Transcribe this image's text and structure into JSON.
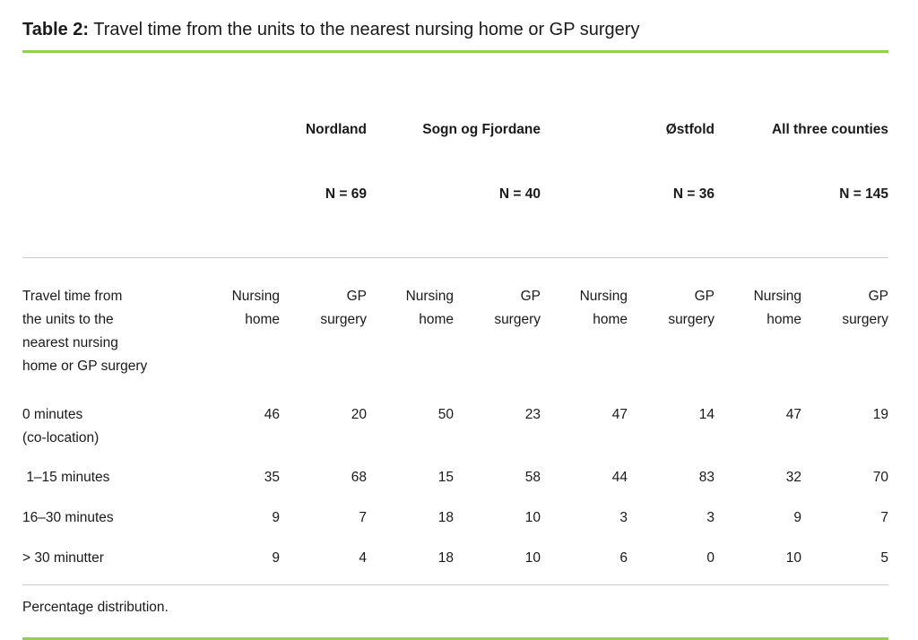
{
  "page": {
    "background": "#ffffff",
    "text_color": "#1a1a1a",
    "accent_green": "#92d050",
    "divider_gray": "#c9c9c9"
  },
  "header": {
    "label": "Table 2:",
    "title": "Travel time from the units to the nearest nursing home or GP surgery"
  },
  "table": {
    "row_header": "Travel time from\nthe units to the\nnearest nursing\nhome or GP surgery",
    "groups": [
      {
        "name": "Nordland",
        "n": "N = 69"
      },
      {
        "name": "Sogn og Fjordane",
        "n": "N = 40"
      },
      {
        "name": "Østfold",
        "n": "N = 36"
      },
      {
        "name": "All three counties",
        "n": "N = 145"
      }
    ],
    "subheaders": {
      "nursing_home": "Nursing\nhome",
      "gp_surgery": "GP\nsurgery"
    },
    "rows": [
      {
        "label": "0 minutes\n(co-location)",
        "values": [
          "46",
          "20",
          "50",
          "23",
          "47",
          "14",
          "47",
          "19"
        ]
      },
      {
        "label": " 1–15 minutes",
        "values": [
          "35",
          "68",
          "15",
          "58",
          "44",
          "83",
          "32",
          "70"
        ]
      },
      {
        "label": "16–30 minutes",
        "values": [
          "9",
          "7",
          "18",
          "10",
          "3",
          "3",
          "9",
          "7"
        ]
      },
      {
        "label": "> 30 minutter",
        "values": [
          "9",
          "4",
          "18",
          "10",
          "6",
          "0",
          "10",
          "5"
        ]
      }
    ]
  },
  "footnote": "Percentage distribution.",
  "chart_data": {
    "type": "table",
    "title": "Table 2: Travel time from the units to the nearest nursing home or GP surgery",
    "column_groups": [
      "Nordland N = 69",
      "Sogn og Fjordane N = 40",
      "Østfold N = 36",
      "All three counties N = 145"
    ],
    "columns": [
      "Nursing home",
      "GP surgery",
      "Nursing home",
      "GP surgery",
      "Nursing home",
      "GP surgery",
      "Nursing home",
      "GP surgery"
    ],
    "row_labels": [
      "0 minutes (co-location)",
      "1–15 minutes",
      "16–30 minutes",
      "> 30 minutter"
    ],
    "values": [
      [
        46,
        20,
        50,
        23,
        47,
        14,
        47,
        19
      ],
      [
        35,
        68,
        15,
        58,
        44,
        83,
        32,
        70
      ],
      [
        9,
        7,
        18,
        10,
        3,
        3,
        9,
        7
      ],
      [
        9,
        4,
        18,
        10,
        6,
        0,
        10,
        5
      ]
    ],
    "note": "Percentage distribution."
  }
}
